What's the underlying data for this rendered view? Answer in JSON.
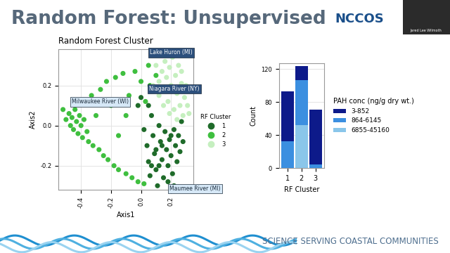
{
  "slide": {
    "title": "Random Forest: Unsupervised",
    "logo": "NCCOS",
    "presenter": "Jared Lee Wilmoth",
    "footer": "SCIENCE SERVING COASTAL COMMUNITIES"
  },
  "chart_data": [
    {
      "type": "scatter",
      "title": "Random Forest Cluster",
      "x_label": "Axis1",
      "y_label": "Axis2",
      "xlim": [
        -0.55,
        0.35
      ],
      "ylim": [
        -0.32,
        0.38
      ],
      "xticks": [
        -0.4,
        -0.2,
        0.0,
        0.2
      ],
      "yticks": [
        -0.2,
        0.0,
        0.2
      ],
      "grid": true,
      "legend": "right",
      "legend_title": "RF Cluster",
      "series": [
        {
          "name": "1",
          "color": "#1f6b2a",
          "x": [
            0.02,
            0.04,
            0.05,
            0.06,
            0.07,
            0.08,
            0.09,
            0.1,
            0.11,
            0.12,
            0.13,
            0.14,
            0.15,
            0.16,
            0.17,
            0.18,
            0.19,
            0.2,
            0.21,
            0.22,
            0.23,
            0.24,
            0.25,
            0.26,
            0.27,
            0.28,
            0.1,
            0.14,
            0.18,
            0.2,
            0.07,
            0.12,
            -0.02,
            0.0,
            0.05,
            0.22
          ],
          "y": [
            -0.02,
            -0.1,
            -0.18,
            -0.25,
            0.05,
            -0.05,
            -0.14,
            -0.22,
            -0.3,
            0.0,
            -0.08,
            -0.17,
            -0.26,
            -0.03,
            -0.12,
            -0.2,
            -0.07,
            -0.15,
            -0.24,
            -0.02,
            -0.1,
            -0.18,
            -0.05,
            -0.13,
            0.02,
            -0.08,
            -0.12,
            -0.1,
            -0.28,
            -0.05,
            -0.2,
            -0.2,
            0.1,
            0.14,
            0.1,
            -0.3
          ]
        },
        {
          "name": "2",
          "color": "#3fbf3f",
          "x": [
            -0.52,
            -0.5,
            -0.48,
            -0.47,
            -0.46,
            -0.45,
            -0.44,
            -0.43,
            -0.42,
            -0.41,
            -0.4,
            -0.39,
            -0.38,
            -0.37,
            -0.36,
            -0.35,
            -0.33,
            -0.32,
            -0.3,
            -0.28,
            -0.27,
            -0.25,
            -0.23,
            -0.22,
            -0.2,
            -0.18,
            -0.17,
            -0.15,
            -0.12,
            -0.1,
            -0.08,
            -0.06,
            -0.04,
            -0.02,
            0.0,
            0.02,
            0.03,
            0.06,
            -0.1,
            -0.15,
            0.1,
            0.05
          ],
          "y": [
            0.08,
            0.03,
            0.06,
            0.0,
            0.04,
            -0.02,
            0.08,
            0.02,
            -0.04,
            0.05,
            0.0,
            -0.06,
            0.03,
            0.12,
            -0.03,
            -0.08,
            0.15,
            -0.1,
            0.05,
            -0.12,
            0.18,
            -0.15,
            0.22,
            -0.17,
            0.1,
            -0.2,
            0.24,
            -0.22,
            0.26,
            -0.24,
            0.15,
            -0.26,
            0.27,
            -0.28,
            0.22,
            -0.29,
            0.12,
            0.2,
            0.05,
            -0.05,
            0.25,
            0.3
          ]
        },
        {
          "name": "3",
          "color": "#c5efbf",
          "x": [
            0.1,
            0.12,
            0.13,
            0.14,
            0.15,
            0.16,
            0.17,
            0.18,
            0.19,
            0.2,
            0.21,
            0.22,
            0.23,
            0.24,
            0.25,
            0.26,
            0.27,
            0.28,
            0.29,
            0.3,
            0.31,
            0.15,
            0.19,
            0.24,
            0.12,
            0.27,
            0.08,
            0.32
          ],
          "y": [
            0.3,
            0.22,
            0.35,
            0.27,
            0.18,
            0.32,
            0.24,
            0.12,
            0.29,
            0.2,
            0.34,
            0.08,
            0.25,
            0.16,
            0.3,
            0.1,
            0.21,
            0.05,
            0.14,
            0.2,
            0.1,
            0.1,
            0.06,
            0.03,
            0.15,
            0.27,
            0.2,
            0.06
          ]
        }
      ],
      "annotations": [
        {
          "text": "Lake Huron (MI)",
          "x": 0.2,
          "y": 0.33
        },
        {
          "text": "Niagara River (NY)",
          "x": 0.3,
          "y": 0.12
        },
        {
          "text": "Milwaukee River (WI)",
          "x": -0.5,
          "y": 0.05
        },
        {
          "text": "Maumee River (MI)",
          "x": 0.15,
          "y": -0.3
        }
      ]
    },
    {
      "type": "bar",
      "stacked": true,
      "categories": [
        "1",
        "2",
        "3"
      ],
      "x_label": "RF Cluster",
      "y_label": "Count",
      "ylim": [
        0,
        127
      ],
      "yticks": [
        0,
        40,
        80,
        120
      ],
      "grid": true,
      "legend": "right",
      "legend_title": "PAH conc (ng/g dry wt.)",
      "series": [
        {
          "name": "6855-45160",
          "color": "#8ac6ea",
          "values": [
            0,
            52,
            0
          ]
        },
        {
          "name": "864-6145",
          "color": "#3b8fe0",
          "values": [
            33,
            55,
            5
          ]
        },
        {
          "name": "3-852",
          "color": "#0d1a8a",
          "values": [
            60,
            17,
            66
          ]
        }
      ]
    }
  ]
}
